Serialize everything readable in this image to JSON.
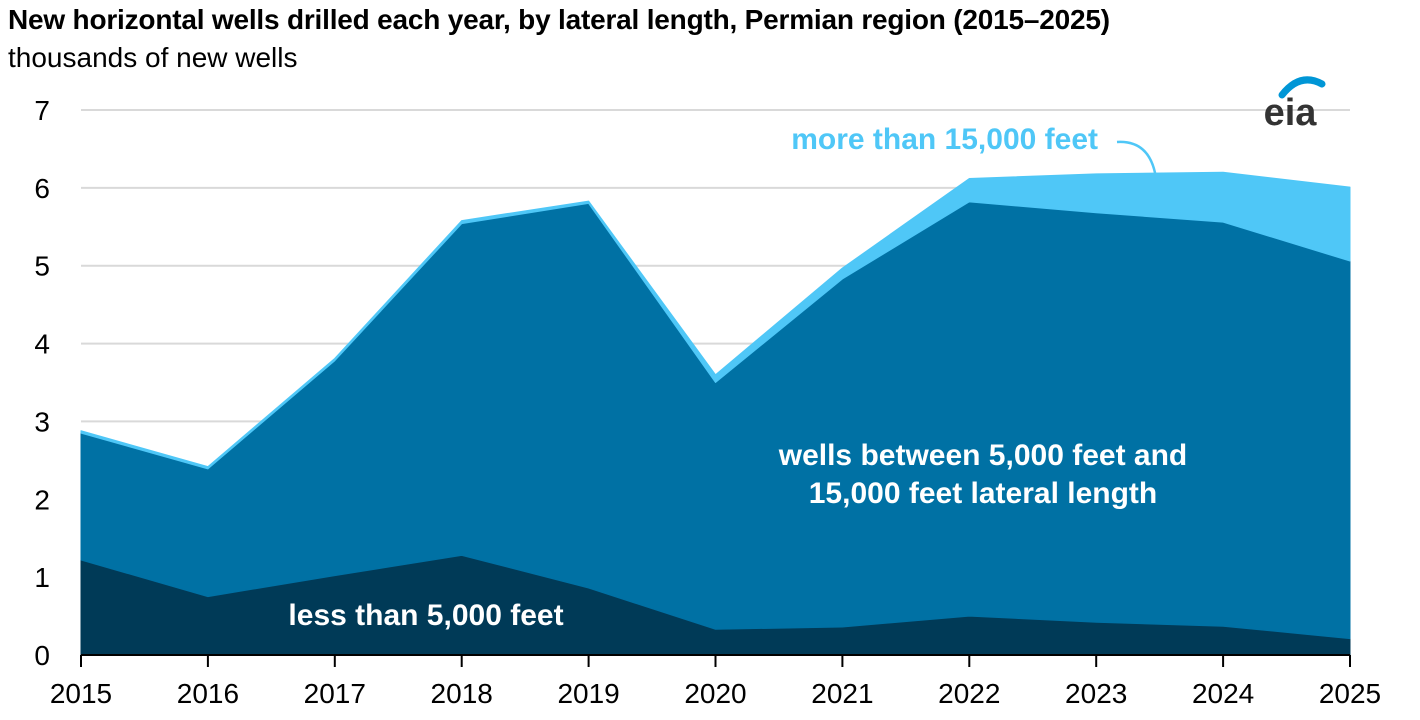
{
  "header": {
    "title": "New horizontal wells drilled each year, by lateral length, Permian region (2015–2025)",
    "subtitle": "thousands of new wells"
  },
  "logo": {
    "text": "eia"
  },
  "colors": {
    "less_than_5000": "#003a57",
    "between": "#0071a4",
    "more_than_15000": "#4fc7f7",
    "grid": "#d9d9d9",
    "axis": "#000000"
  },
  "chart_data": {
    "type": "area",
    "stacked": true,
    "x": [
      "2015",
      "2016",
      "2017",
      "2018",
      "2019",
      "2020",
      "2021",
      "2022",
      "2023",
      "2024",
      "2025"
    ],
    "series": [
      {
        "name": "less than 5,000 feet",
        "values": [
          1.22,
          0.75,
          1.02,
          1.28,
          0.86,
          0.33,
          0.36,
          0.5,
          0.42,
          0.37,
          0.21
        ]
      },
      {
        "name": "wells between 5,000 feet and 15,000 feet lateral length",
        "values": [
          1.63,
          1.64,
          2.76,
          4.26,
          4.94,
          3.17,
          4.47,
          5.32,
          5.26,
          5.19,
          4.85
        ]
      },
      {
        "name": "more than 15,000 feet",
        "values": [
          0.03,
          0.03,
          0.03,
          0.04,
          0.03,
          0.1,
          0.14,
          0.3,
          0.5,
          0.64,
          0.95
        ]
      }
    ],
    "ylim": [
      0,
      7
    ],
    "yticks": [
      "0",
      "1",
      "2",
      "3",
      "4",
      "5",
      "6",
      "7"
    ],
    "grid": true,
    "annotations": {
      "less_than_5000": "less than 5,000 feet",
      "between_line1": "wells between 5,000 feet and",
      "between_line2": "15,000 feet lateral length",
      "more_than_15000": "more than 15,000 feet"
    }
  }
}
